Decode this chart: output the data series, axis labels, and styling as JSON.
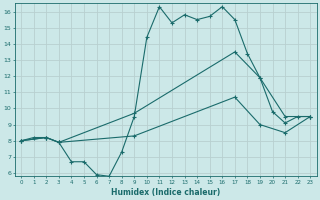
{
  "xlabel": "Humidex (Indice chaleur)",
  "xlim": [
    -0.5,
    23.5
  ],
  "ylim": [
    5.8,
    16.5
  ],
  "yticks": [
    6,
    7,
    8,
    9,
    10,
    11,
    12,
    13,
    14,
    15,
    16
  ],
  "xticks": [
    0,
    1,
    2,
    3,
    4,
    5,
    6,
    7,
    8,
    9,
    10,
    11,
    12,
    13,
    14,
    15,
    16,
    17,
    18,
    19,
    20,
    21,
    22,
    23
  ],
  "bg_color": "#cce8e8",
  "grid_color": "#b8d0d0",
  "line_color": "#1a6b6b",
  "line1_x": [
    0,
    1,
    2,
    3,
    4,
    5,
    6,
    7,
    8,
    9,
    10,
    11,
    12,
    13,
    14,
    15,
    16,
    17,
    18,
    19,
    20,
    21,
    22,
    23
  ],
  "line1_y": [
    8.0,
    8.2,
    8.2,
    7.9,
    6.7,
    6.7,
    5.9,
    5.8,
    7.3,
    9.5,
    14.4,
    16.3,
    15.3,
    15.8,
    15.5,
    15.7,
    16.3,
    15.5,
    13.4,
    11.9,
    9.8,
    9.1,
    9.5,
    9.5
  ],
  "line2_x": [
    0,
    2,
    3,
    9,
    17,
    19,
    21,
    23
  ],
  "line2_y": [
    8.0,
    8.2,
    7.9,
    9.7,
    13.5,
    11.9,
    9.5,
    9.5
  ],
  "line3_x": [
    0,
    2,
    3,
    9,
    17,
    19,
    21,
    23
  ],
  "line3_y": [
    8.0,
    8.2,
    7.9,
    8.3,
    10.7,
    9.0,
    8.5,
    9.5
  ]
}
